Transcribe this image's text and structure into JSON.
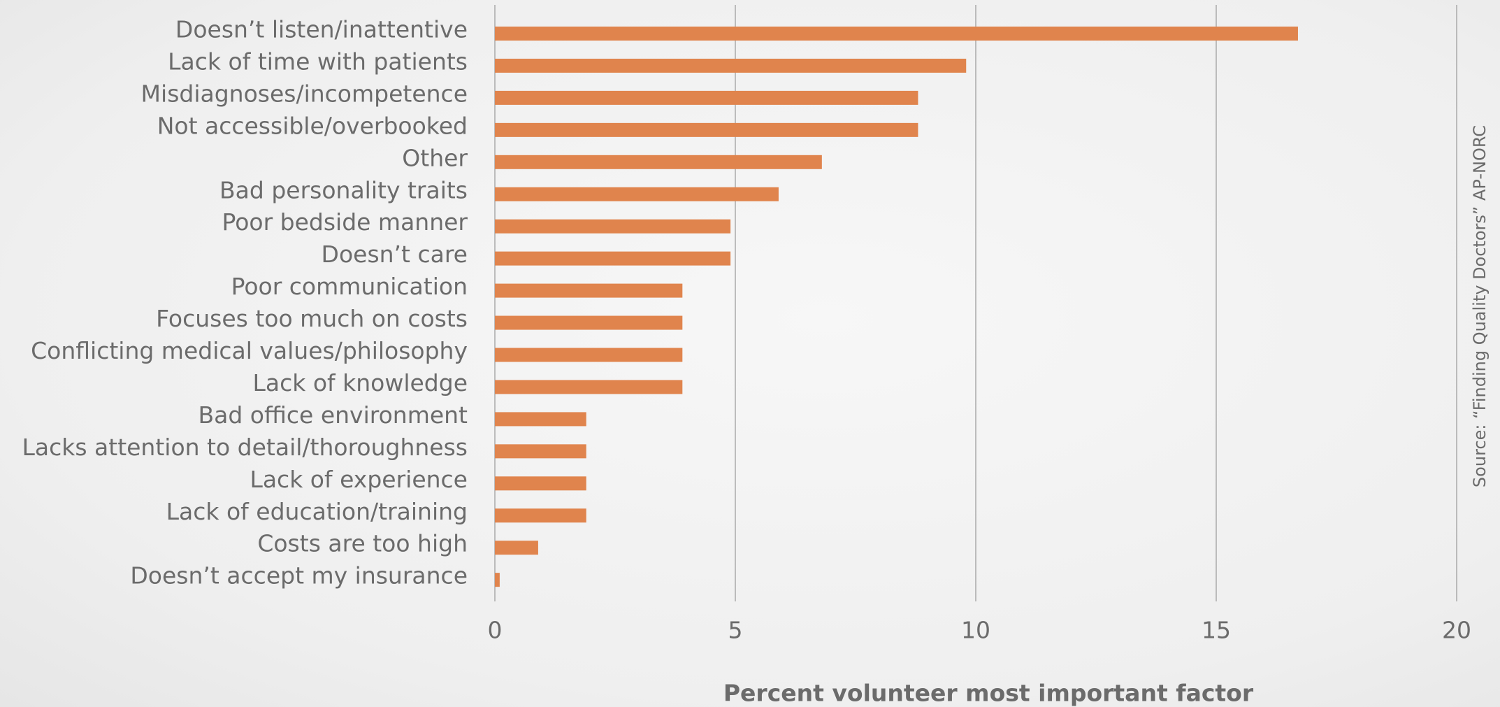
{
  "chart_data": {
    "type": "bar",
    "orientation": "horizontal",
    "categories": [
      "Doesn’t listen/inattentive",
      "Lack of time with patients",
      "Misdiagnoses/incompetence",
      "Not accessible/overbooked",
      "Other",
      "Bad personality traits",
      "Poor bedside manner",
      "Doesn’t care",
      "Poor communication",
      "Focuses too much on costs",
      "Conflicting medical values/philosophy",
      "Lack of knowledge",
      "Bad office environment",
      "Lacks attention to detail/thoroughness",
      "Lack of experience",
      "Lack of education/training",
      "Costs are too high",
      "Doesn’t accept my insurance"
    ],
    "values": [
      16.7,
      9.8,
      8.8,
      8.8,
      6.8,
      5.9,
      4.9,
      4.9,
      3.9,
      3.9,
      3.9,
      3.9,
      1.9,
      1.9,
      1.9,
      1.9,
      0.9,
      0.1
    ],
    "color": "#e0844d",
    "xlim": [
      0,
      20
    ],
    "xticks": [
      0,
      5,
      10,
      15,
      20
    ],
    "grid": true,
    "xlabel": "Percent volunteer most important factor",
    "source": "Source: “Finding Quality Doctors” AP-NORC"
  }
}
